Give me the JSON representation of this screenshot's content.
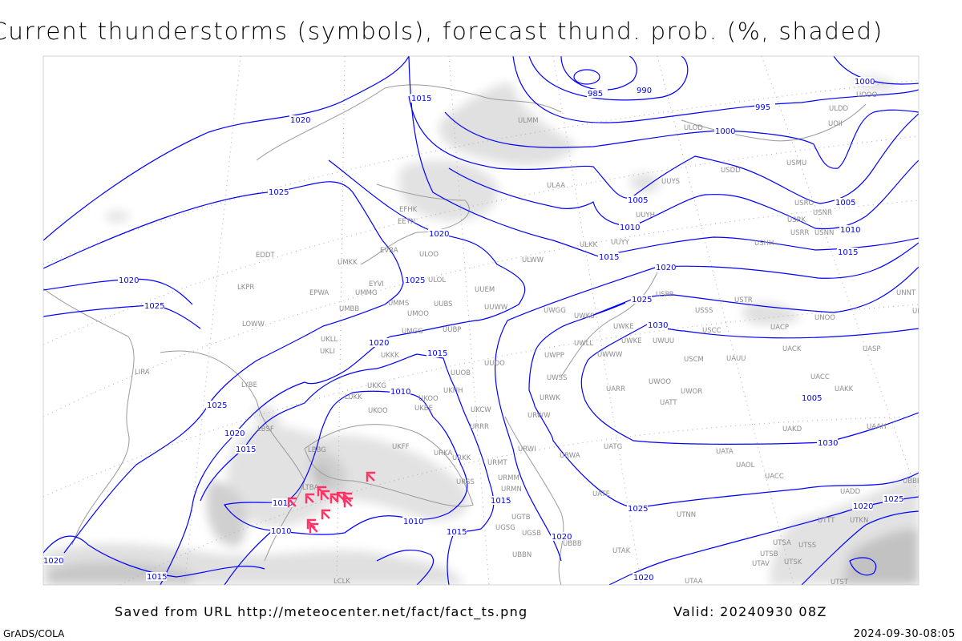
{
  "title": "Current thunderstorms (symbols), forecast thund. prob. (%, shaded)",
  "footer": {
    "saved": "Saved from URL http://meteocenter.net/fact/fact_ts.png",
    "valid": "Valid: 20240930 08Z",
    "software": "GrADS/COLA",
    "timestamp": "2024-09-30-08:05"
  },
  "colors": {
    "isobar": "#0000ff",
    "thunderstorm_symbol": "#ff3366",
    "station_label": "#8c8c8c",
    "coastline": "#9a9a9a",
    "probability_shading": [
      "#e4e4e4",
      "#d2d2d2",
      "#bdbdbd",
      "#a8a8a8"
    ]
  },
  "isobar_labels": [
    "985",
    "990",
    "995",
    "1000",
    "1000",
    "1005",
    "1005",
    "1005",
    "1010",
    "1010",
    "1015",
    "1015",
    "1015",
    "1020",
    "1020",
    "1020",
    "1025",
    "1025",
    "1025",
    "1020",
    "1025",
    "1020",
    "1025",
    "1030",
    "1030",
    "1015",
    "1010",
    "1015",
    "1010",
    "1010",
    "1010",
    "1020",
    "1015",
    "1020",
    "1010",
    "1015",
    "1025",
    "1020",
    "1020",
    "1025",
    "1015",
    "1020"
  ],
  "stations": [
    "ULMM",
    "ULOD",
    "USDD",
    "USMU",
    "UUYS",
    "ULAA",
    "EFHK",
    "EETN",
    "UUYH",
    "USRO",
    "USNR",
    "USRK",
    "USRR",
    "USNN",
    "UUYY",
    "ULKK",
    "USHH",
    "ULWW",
    "ULOO",
    "EVRA",
    "EDDT",
    "UMKK",
    "ULOL",
    "EYVI",
    "UUEM",
    "EPWA",
    "UMMG",
    "LKPR",
    "UMMS",
    "UMOO",
    "UUBS",
    "UUWW",
    "UMBB",
    "UWGG",
    "UWKS",
    "USPP",
    "USSS",
    "USTR",
    "UNOO",
    "UNNT",
    "UNBB",
    "UACP",
    "LOWW",
    "UMGG",
    "UUBP",
    "UKLL",
    "UKLI",
    "UWKE",
    "UWKE",
    "UWUU",
    "UWLL",
    "USCC",
    "UWWW",
    "UWPP",
    "UACK",
    "UASP",
    "UKKK",
    "UUOO",
    "USCM",
    "UAUU",
    "LIRA",
    "UUOB",
    "UWSS",
    "UWOO",
    "UACC",
    "UARR",
    "UWOR",
    "UAKK",
    "UKKG",
    "UKOO",
    "UKHH",
    "URWK",
    "UATT",
    "LYBE",
    "LUKK",
    "UKBE",
    "UKOO",
    "UKCW",
    "URWW",
    "UAKD",
    "UAAH",
    "LBSF",
    "URRR",
    "URWI",
    "UATG",
    "UATA",
    "UKFF",
    "URKA",
    "URKK",
    "LBBG",
    "URWA",
    "URMT",
    "UAOL",
    "UACC",
    "URMM",
    "URSS",
    "URMN",
    "UATE",
    "LTBA",
    "UBBB",
    "UADD",
    "UGTB",
    "UGSG",
    "UGSB",
    "UBBN",
    "UBBB",
    "UTAK",
    "UTNN",
    "UTTT",
    "UTKN",
    "UTSA",
    "UTSB",
    "UTSS",
    "UTAV",
    "UTSK",
    "UTST",
    "UTAA",
    "LCLK",
    "ULDD",
    "UOOO",
    "UOII"
  ],
  "thunderstorm_count": 12
}
